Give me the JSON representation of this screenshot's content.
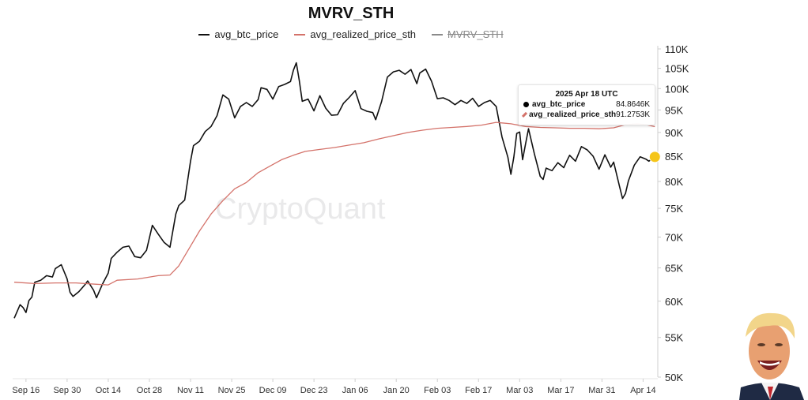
{
  "title": "MVRV_STH",
  "legend": [
    {
      "label": "avg_btc_price",
      "color": "#111111",
      "hidden": false
    },
    {
      "label": "avg_realized_price_sth",
      "color": "#d4726a",
      "hidden": false
    },
    {
      "label": "MVRV_STH",
      "color": "#8a8a8a",
      "hidden": true
    }
  ],
  "watermark": "CryptoQuant",
  "tooltip": {
    "date": "2025 Apr 18 UTC",
    "rows": [
      {
        "name": "avg_btc_price",
        "value": "84.8646K"
      },
      {
        "name": "avg_realized_price_sth",
        "value": "91.2753K"
      }
    ]
  },
  "chart_data": {
    "type": "line",
    "y_scale": "log",
    "ylim": [
      50000,
      110000
    ],
    "yticks": [
      {
        "v": 50000,
        "label": "50K"
      },
      {
        "v": 55000,
        "label": "55K"
      },
      {
        "v": 60000,
        "label": "60K"
      },
      {
        "v": 65000,
        "label": "65K"
      },
      {
        "v": 70000,
        "label": "70K"
      },
      {
        "v": 75000,
        "label": "75K"
      },
      {
        "v": 80000,
        "label": "80K"
      },
      {
        "v": 85000,
        "label": "85K"
      },
      {
        "v": 90000,
        "label": "90K"
      },
      {
        "v": 95000,
        "label": "95K"
      },
      {
        "v": 100000,
        "label": "100K"
      },
      {
        "v": 105000,
        "label": "105K"
      },
      {
        "v": 110000,
        "label": "110K"
      }
    ],
    "xlim": [
      "2024-09-12",
      "2025-04-19"
    ],
    "xticks": [
      {
        "date": "2024-09-16",
        "label": "Sep 16"
      },
      {
        "date": "2024-09-30",
        "label": "Sep 30"
      },
      {
        "date": "2024-10-14",
        "label": "Oct 14"
      },
      {
        "date": "2024-10-28",
        "label": "Oct 28"
      },
      {
        "date": "2024-11-11",
        "label": "Nov 11"
      },
      {
        "date": "2024-11-25",
        "label": "Nov 25"
      },
      {
        "date": "2024-12-09",
        "label": "Dec 09"
      },
      {
        "date": "2024-12-23",
        "label": "Dec 23"
      },
      {
        "date": "2025-01-06",
        "label": "Jan 06"
      },
      {
        "date": "2025-01-20",
        "label": "Jan 20"
      },
      {
        "date": "2025-02-03",
        "label": "Feb 03"
      },
      {
        "date": "2025-02-17",
        "label": "Feb 17"
      },
      {
        "date": "2025-03-03",
        "label": "Mar 03"
      },
      {
        "date": "2025-03-17",
        "label": "Mar 17"
      },
      {
        "date": "2025-03-31",
        "label": "Mar 31"
      },
      {
        "date": "2025-04-14",
        "label": "Apr 14"
      }
    ],
    "highlight_point": {
      "date": "2025-04-18",
      "value": 84864.6,
      "color": "#f5c518"
    },
    "series": [
      {
        "name": "avg_btc_price",
        "color": "#111111",
        "points": [
          [
            "2024-09-12",
            57600
          ],
          [
            "2024-09-14",
            59500
          ],
          [
            "2024-09-15",
            59100
          ],
          [
            "2024-09-16",
            58400
          ],
          [
            "2024-09-17",
            60100
          ],
          [
            "2024-09-18",
            60600
          ],
          [
            "2024-09-19",
            62800
          ],
          [
            "2024-09-21",
            63100
          ],
          [
            "2024-09-23",
            63800
          ],
          [
            "2024-09-25",
            63600
          ],
          [
            "2024-09-26",
            64900
          ],
          [
            "2024-09-28",
            65500
          ],
          [
            "2024-09-30",
            63300
          ],
          [
            "2024-10-01",
            61300
          ],
          [
            "2024-10-02",
            60700
          ],
          [
            "2024-10-04",
            61400
          ],
          [
            "2024-10-06",
            62400
          ],
          [
            "2024-10-07",
            63000
          ],
          [
            "2024-10-09",
            61600
          ],
          [
            "2024-10-10",
            60500
          ],
          [
            "2024-10-12",
            62500
          ],
          [
            "2024-10-14",
            64200
          ],
          [
            "2024-10-15",
            66500
          ],
          [
            "2024-10-17",
            67500
          ],
          [
            "2024-10-19",
            68300
          ],
          [
            "2024-10-21",
            68500
          ],
          [
            "2024-10-23",
            66800
          ],
          [
            "2024-10-25",
            66600
          ],
          [
            "2024-10-27",
            67800
          ],
          [
            "2024-10-29",
            72000
          ],
          [
            "2024-10-31",
            70500
          ],
          [
            "2024-11-02",
            69100
          ],
          [
            "2024-11-04",
            68300
          ],
          [
            "2024-11-06",
            74000
          ],
          [
            "2024-11-07",
            75500
          ],
          [
            "2024-11-09",
            76500
          ],
          [
            "2024-11-11",
            84000
          ],
          [
            "2024-11-12",
            87200
          ],
          [
            "2024-11-14",
            88100
          ],
          [
            "2024-11-16",
            90200
          ],
          [
            "2024-11-18",
            91300
          ],
          [
            "2024-11-20",
            93700
          ],
          [
            "2024-11-22",
            98500
          ],
          [
            "2024-11-24",
            97500
          ],
          [
            "2024-11-26",
            93200
          ],
          [
            "2024-11-28",
            95800
          ],
          [
            "2024-11-30",
            96700
          ],
          [
            "2024-12-02",
            95800
          ],
          [
            "2024-12-04",
            97400
          ],
          [
            "2024-12-05",
            100200
          ],
          [
            "2024-12-07",
            99800
          ],
          [
            "2024-12-09",
            97500
          ],
          [
            "2024-12-11",
            100500
          ],
          [
            "2024-12-13",
            101000
          ],
          [
            "2024-12-15",
            101700
          ],
          [
            "2024-12-16",
            104500
          ],
          [
            "2024-12-17",
            106400
          ],
          [
            "2024-12-18",
            102000
          ],
          [
            "2024-12-19",
            97000
          ],
          [
            "2024-12-21",
            97500
          ],
          [
            "2024-12-23",
            94800
          ],
          [
            "2024-12-25",
            98300
          ],
          [
            "2024-12-27",
            95400
          ],
          [
            "2024-12-29",
            93800
          ],
          [
            "2024-12-31",
            93900
          ],
          [
            "2025-01-02",
            96500
          ],
          [
            "2025-01-04",
            97900
          ],
          [
            "2025-01-06",
            99500
          ],
          [
            "2025-01-08",
            95300
          ],
          [
            "2025-01-10",
            94700
          ],
          [
            "2025-01-12",
            94400
          ],
          [
            "2025-01-13",
            92800
          ],
          [
            "2025-01-15",
            96900
          ],
          [
            "2025-01-17",
            102800
          ],
          [
            "2025-01-19",
            104100
          ],
          [
            "2025-01-21",
            104500
          ],
          [
            "2025-01-23",
            103500
          ],
          [
            "2025-01-25",
            104700
          ],
          [
            "2025-01-27",
            101200
          ],
          [
            "2025-01-28",
            103800
          ],
          [
            "2025-01-30",
            104800
          ],
          [
            "2025-02-01",
            101800
          ],
          [
            "2025-02-03",
            97600
          ],
          [
            "2025-02-05",
            97800
          ],
          [
            "2025-02-07",
            97200
          ],
          [
            "2025-02-09",
            96200
          ],
          [
            "2025-02-11",
            97200
          ],
          [
            "2025-02-13",
            96500
          ],
          [
            "2025-02-15",
            97700
          ],
          [
            "2025-02-17",
            95800
          ],
          [
            "2025-02-19",
            96700
          ],
          [
            "2025-02-21",
            97200
          ],
          [
            "2025-02-23",
            95800
          ],
          [
            "2025-02-25",
            89000
          ],
          [
            "2025-02-27",
            84800
          ],
          [
            "2025-02-28",
            81400
          ],
          [
            "2025-03-01",
            84800
          ],
          [
            "2025-03-02",
            89800
          ],
          [
            "2025-03-03",
            90100
          ],
          [
            "2025-03-04",
            84300
          ],
          [
            "2025-03-05",
            87500
          ],
          [
            "2025-03-06",
            90800
          ],
          [
            "2025-03-08",
            85500
          ],
          [
            "2025-03-10",
            81000
          ],
          [
            "2025-03-11",
            80400
          ],
          [
            "2025-03-12",
            82600
          ],
          [
            "2025-03-14",
            82100
          ],
          [
            "2025-03-16",
            83700
          ],
          [
            "2025-03-18",
            82700
          ],
          [
            "2025-03-19",
            84000
          ],
          [
            "2025-03-20",
            85200
          ],
          [
            "2025-03-22",
            84000
          ],
          [
            "2025-03-24",
            87000
          ],
          [
            "2025-03-26",
            86300
          ],
          [
            "2025-03-28",
            85000
          ],
          [
            "2025-03-30",
            82400
          ],
          [
            "2025-04-01",
            85300
          ],
          [
            "2025-04-03",
            82800
          ],
          [
            "2025-04-04",
            83800
          ],
          [
            "2025-04-06",
            79000
          ],
          [
            "2025-04-07",
            76800
          ],
          [
            "2025-04-08",
            77700
          ],
          [
            "2025-04-09",
            80100
          ],
          [
            "2025-04-11",
            83200
          ],
          [
            "2025-04-13",
            84900
          ],
          [
            "2025-04-15",
            84400
          ],
          [
            "2025-04-16",
            84000
          ],
          [
            "2025-04-17",
            84500
          ],
          [
            "2025-04-18",
            84864.6
          ]
        ]
      },
      {
        "name": "avg_realized_price_sth",
        "color": "#d4726a",
        "points": [
          [
            "2024-09-12",
            62800
          ],
          [
            "2024-09-19",
            62600
          ],
          [
            "2024-09-26",
            62700
          ],
          [
            "2024-10-03",
            62700
          ],
          [
            "2024-10-10",
            62500
          ],
          [
            "2024-10-14",
            62400
          ],
          [
            "2024-10-17",
            63100
          ],
          [
            "2024-10-24",
            63300
          ],
          [
            "2024-10-31",
            63800
          ],
          [
            "2024-11-04",
            63900
          ],
          [
            "2024-11-07",
            65300
          ],
          [
            "2024-11-11",
            68500
          ],
          [
            "2024-11-14",
            71000
          ],
          [
            "2024-11-18",
            74000
          ],
          [
            "2024-11-22",
            76400
          ],
          [
            "2024-11-26",
            78600
          ],
          [
            "2024-11-30",
            79800
          ],
          [
            "2024-12-04",
            81700
          ],
          [
            "2024-12-08",
            83000
          ],
          [
            "2024-12-12",
            84300
          ],
          [
            "2024-12-16",
            85200
          ],
          [
            "2024-12-20",
            86000
          ],
          [
            "2024-12-25",
            86400
          ],
          [
            "2024-12-30",
            86800
          ],
          [
            "2025-01-04",
            87300
          ],
          [
            "2025-01-09",
            87800
          ],
          [
            "2025-01-14",
            88600
          ],
          [
            "2025-01-19",
            89300
          ],
          [
            "2025-01-24",
            90000
          ],
          [
            "2025-01-29",
            90500
          ],
          [
            "2025-02-03",
            90900
          ],
          [
            "2025-02-08",
            91100
          ],
          [
            "2025-02-13",
            91300
          ],
          [
            "2025-02-18",
            91600
          ],
          [
            "2025-02-23",
            92200
          ],
          [
            "2025-02-28",
            91900
          ],
          [
            "2025-03-05",
            91300
          ],
          [
            "2025-03-10",
            91100
          ],
          [
            "2025-03-15",
            91000
          ],
          [
            "2025-03-20",
            90900
          ],
          [
            "2025-03-25",
            90900
          ],
          [
            "2025-03-30",
            90800
          ],
          [
            "2025-04-04",
            91000
          ],
          [
            "2025-04-08",
            91700
          ],
          [
            "2025-04-12",
            91900
          ],
          [
            "2025-04-15",
            91700
          ],
          [
            "2025-04-18",
            91275.3
          ]
        ]
      }
    ]
  }
}
